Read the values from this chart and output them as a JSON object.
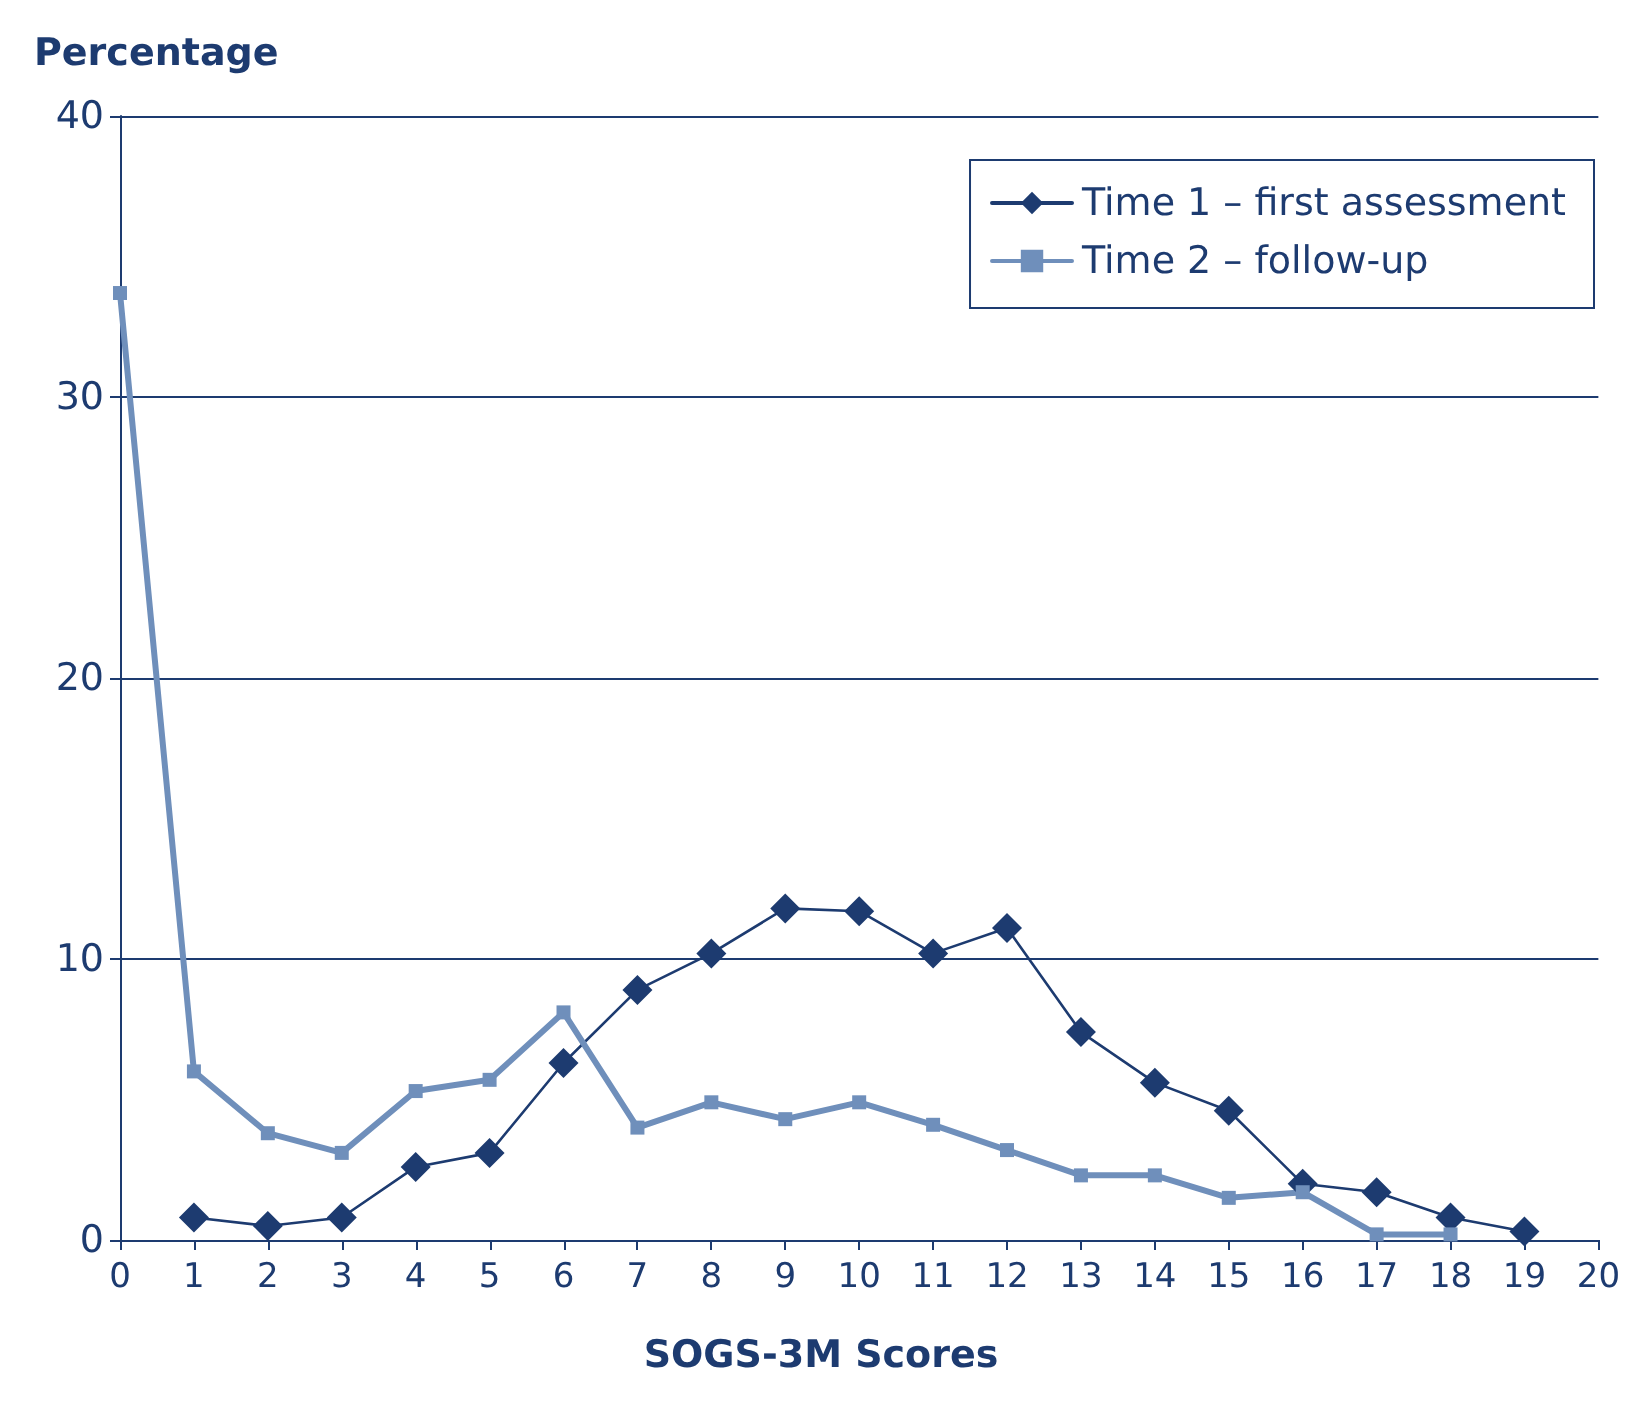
{
  "chart_data": {
    "type": "line",
    "xlabel": "SOGS-3M Scores",
    "ylabel": "Percentage",
    "x": [
      0,
      1,
      2,
      3,
      4,
      5,
      6,
      7,
      8,
      9,
      10,
      11,
      12,
      13,
      14,
      15,
      16,
      17,
      18,
      19
    ],
    "xlim": [
      0,
      20
    ],
    "xticks": [
      0,
      1,
      2,
      3,
      4,
      5,
      6,
      7,
      8,
      9,
      10,
      11,
      12,
      13,
      14,
      15,
      16,
      17,
      18,
      19,
      20
    ],
    "series": [
      {
        "name": "Time 1 – first assessment",
        "color": "#1d3b70",
        "marker": "diamond",
        "values": [
          null,
          0.8,
          0.5,
          0.8,
          2.6,
          3.1,
          6.3,
          8.9,
          10.2,
          11.8,
          11.7,
          10.2,
          11.1,
          7.4,
          5.6,
          4.6,
          2.0,
          1.7,
          0.8,
          0.3
        ]
      },
      {
        "name": "Time 2 – follow-up",
        "color": "#6f8fbb",
        "marker": "square",
        "values": [
          33.7,
          6.0,
          3.8,
          3.1,
          5.3,
          5.7,
          8.1,
          4.0,
          4.9,
          4.3,
          4.9,
          4.1,
          3.2,
          2.3,
          2.3,
          1.5,
          1.7,
          0.2,
          0.2,
          null
        ]
      }
    ],
    "ylim": [
      0,
      40
    ],
    "yticks": [
      0,
      10,
      20,
      30,
      40
    ],
    "grid": "y",
    "legend": "top right",
    "line_style": "solid"
  }
}
